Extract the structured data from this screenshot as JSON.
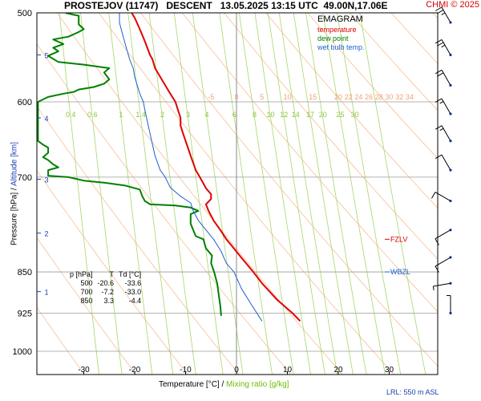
{
  "header": {
    "title": "PROSTEJOV (11747)   DESCENT   13.05.2025 13:15 UTC  49.00N,17.06E",
    "copyright": "CHMI © 2025"
  },
  "legend": {
    "title": "EMAGRAM",
    "items": [
      {
        "label": "temperature",
        "color": "#e00000"
      },
      {
        "label": "dew point",
        "color": "#008000"
      },
      {
        "label": "wet bulb temp.",
        "color": "#1f5fd0"
      }
    ]
  },
  "table": {
    "headers": [
      "p [hPa]",
      "T",
      "Td [°C]"
    ],
    "rows": [
      [
        "500",
        "-20.6",
        "-33.6"
      ],
      [
        "700",
        "-7.2",
        "-33.0"
      ],
      [
        "850",
        "3.3",
        "-4.4"
      ]
    ]
  },
  "levels": {
    "fzlv": {
      "label": "FZLV",
      "color": "#e00000",
      "pressure": 795
    },
    "wbzl": {
      "label": "WBZL",
      "color": "#1f5fd0",
      "pressure": 850
    }
  },
  "footer": {
    "lrl": "LRL: 550 m ASL"
  },
  "chart_data": {
    "type": "line",
    "title": "PROSTEJOV (11747)   DESCENT   13.05.2025 13:15 UTC  49.00N,17.06E",
    "xlabel": "Temperature [°C]",
    "xlabel_sep": "/",
    "xlabel2": "Mixing ratio [g/kg]",
    "ylabel": "Pressure [hPa]",
    "ylabel_sep": "/",
    "ylabel2": "Altitude [km]",
    "xlim": [
      -39,
      39
    ],
    "ylim": [
      1000,
      500
    ],
    "x_ticks": [
      -30,
      -20,
      -10,
      0,
      10,
      20,
      30
    ],
    "y_ticks": [
      500,
      600,
      700,
      850,
      925,
      1000
    ],
    "altitude_ticks": [
      {
        "km": "1",
        "p": 885
      },
      {
        "km": "2",
        "p": 785
      },
      {
        "km": "3",
        "p": 703
      },
      {
        "km": "4",
        "p": 620
      },
      {
        "km": "5",
        "p": 545
      }
    ],
    "mixing_ratio_labels": [
      "0.4",
      "0.6",
      "1",
      "1.4",
      "2",
      "3",
      "4",
      "6",
      "8",
      "10",
      "12",
      "14",
      "17",
      "20",
      "25",
      "30"
    ],
    "temperature_labels": [
      "-5",
      "0",
      "5",
      "10",
      "15",
      "20",
      "22",
      "24",
      "26",
      "28",
      "30",
      "32",
      "34"
    ],
    "series": [
      {
        "name": "temperature",
        "color": "#e00000",
        "points": [
          [
            12.5,
            940
          ],
          [
            11,
            925
          ],
          [
            8,
            900
          ],
          [
            5,
            870
          ],
          [
            3.3,
            850
          ],
          [
            1,
            826
          ],
          [
            -1,
            805
          ],
          [
            -2,
            795
          ],
          [
            -3,
            782
          ],
          [
            -4.5,
            765
          ],
          [
            -5.5,
            750
          ],
          [
            -6,
            740
          ],
          [
            -5,
            732
          ],
          [
            -5,
            725
          ],
          [
            -6,
            716
          ],
          [
            -7.2,
            700
          ],
          [
            -8,
            690
          ],
          [
            -8.5,
            680
          ],
          [
            -9,
            670
          ],
          [
            -9.5,
            660
          ],
          [
            -10,
            650
          ],
          [
            -10.5,
            640
          ],
          [
            -11,
            630
          ],
          [
            -11,
            620
          ],
          [
            -11.5,
            610
          ],
          [
            -12,
            600
          ],
          [
            -13,
            590
          ],
          [
            -14,
            580
          ],
          [
            -15,
            570
          ],
          [
            -16,
            560
          ],
          [
            -16.5,
            550
          ],
          [
            -17,
            545
          ],
          [
            -18,
            530
          ],
          [
            -19,
            517
          ],
          [
            -20,
            505
          ],
          [
            -20.6,
            500
          ]
        ]
      },
      {
        "name": "dew point",
        "color": "#008000",
        "points": [
          [
            -3,
            930
          ],
          [
            -3.2,
            910
          ],
          [
            -3.5,
            890
          ],
          [
            -3.8,
            870
          ],
          [
            -4.4,
            850
          ],
          [
            -5,
            835
          ],
          [
            -4.8,
            822
          ],
          [
            -6,
            810
          ],
          [
            -6.5,
            795
          ],
          [
            -8,
            790
          ],
          [
            -8.5,
            780
          ],
          [
            -9,
            770
          ],
          [
            -9,
            755
          ],
          [
            -7.5,
            750
          ],
          [
            -9,
            745
          ],
          [
            -12,
            742
          ],
          [
            -17,
            740
          ],
          [
            -18,
            735
          ],
          [
            -18.5,
            728
          ],
          [
            -19,
            718
          ],
          [
            -22,
            712
          ],
          [
            -26,
            708
          ],
          [
            -30,
            705
          ],
          [
            -33,
            700
          ],
          [
            -37,
            698
          ],
          [
            -37,
            690
          ],
          [
            -35,
            686
          ],
          [
            -36,
            682
          ],
          [
            -37,
            676
          ],
          [
            -38,
            672
          ],
          [
            -37,
            666
          ],
          [
            -37,
            659
          ],
          [
            -38,
            655
          ],
          [
            -39,
            650
          ],
          [
            -39,
            620
          ],
          [
            -39,
            600
          ],
          [
            -37,
            594
          ],
          [
            -34,
            590
          ],
          [
            -32,
            588
          ],
          [
            -31,
            585
          ],
          [
            -28,
            582
          ],
          [
            -26,
            578
          ],
          [
            -25,
            573
          ],
          [
            -26,
            565
          ],
          [
            -25,
            560
          ],
          [
            -30,
            556
          ],
          [
            -35,
            553
          ],
          [
            -37,
            546
          ],
          [
            -35,
            541
          ],
          [
            -36,
            537
          ],
          [
            -34,
            533
          ],
          [
            -36,
            528
          ],
          [
            -33,
            525
          ],
          [
            -31,
            520
          ],
          [
            -30,
            517
          ],
          [
            -31,
            512
          ],
          [
            -31,
            508
          ],
          [
            -31,
            503
          ],
          [
            -32,
            502
          ],
          [
            -33.6,
            500
          ]
        ]
      },
      {
        "name": "wet bulb temp.",
        "color": "#1f5fd0",
        "points": [
          [
            5,
            940
          ],
          [
            3,
            910
          ],
          [
            1,
            880
          ],
          [
            -0.5,
            850
          ],
          [
            -2,
            835
          ],
          [
            -3,
            815
          ],
          [
            -4.5,
            795
          ],
          [
            -6,
            780
          ],
          [
            -7.5,
            765
          ],
          [
            -8.5,
            750
          ],
          [
            -9,
            738
          ],
          [
            -11,
            728
          ],
          [
            -13,
            715
          ],
          [
            -14,
            700
          ],
          [
            -15,
            690
          ],
          [
            -15.5,
            680
          ],
          [
            -16,
            670
          ],
          [
            -16.5,
            655
          ],
          [
            -17,
            640
          ],
          [
            -17.5,
            625
          ],
          [
            -18,
            610
          ],
          [
            -18.3,
            600
          ],
          [
            -19,
            590
          ],
          [
            -19.5,
            580
          ],
          [
            -20,
            570
          ],
          [
            -20.3,
            560
          ],
          [
            -21,
            550
          ],
          [
            -21.5,
            540
          ],
          [
            -22,
            530
          ],
          [
            -22.5,
            520
          ],
          [
            -23,
            510
          ],
          [
            -23,
            500
          ]
        ]
      }
    ],
    "wind_barbs": [
      {
        "p": 510,
        "dir": 330,
        "speed": 25
      },
      {
        "p": 545,
        "dir": 330,
        "speed": 25
      },
      {
        "p": 580,
        "dir": 330,
        "speed": 20
      },
      {
        "p": 615,
        "dir": 330,
        "speed": 15
      },
      {
        "p": 650,
        "dir": 330,
        "speed": 15
      },
      {
        "p": 690,
        "dir": 330,
        "speed": 10
      },
      {
        "p": 735,
        "dir": 300,
        "speed": 10
      },
      {
        "p": 780,
        "dir": 240,
        "speed": 10
      },
      {
        "p": 825,
        "dir": 240,
        "speed": 10
      },
      {
        "p": 870,
        "dir": 260,
        "speed": 5
      },
      {
        "p": 925,
        "dir": 360,
        "speed": 5
      }
    ],
    "grid": true,
    "legend_position": "top-right"
  }
}
